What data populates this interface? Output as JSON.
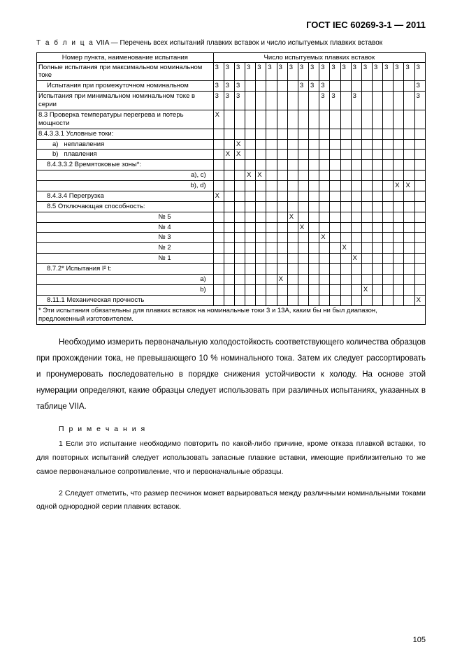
{
  "doc_header": "ГОСТ IEC 60269-3-1 — 2011",
  "table_caption_prefix": "Т а б л и ц а",
  "table_caption_num": "VIIA",
  "table_caption_text": " — Перечень всех испытаний плавких вставок и число испытуемых плавких вставок",
  "header_col1": "Номер пункта, наименование испытания",
  "header_col2": "Число испытуемых плавких вставок",
  "col_nums": [
    "3",
    "3",
    "3",
    "3",
    "3",
    "3",
    "3",
    "3",
    "3",
    "3",
    "3",
    "3",
    "3",
    "3",
    "3",
    "3",
    "3",
    "3",
    "3",
    "3"
  ],
  "rows": [
    {
      "label": "Полные испытания при максимальном номинальном токе",
      "marks": [
        "3",
        "3",
        "3",
        "3",
        "3",
        "3",
        "3",
        "3",
        "3",
        "3",
        "3",
        "3",
        "3",
        "3",
        "3",
        "3",
        "3",
        "3",
        "3",
        "3"
      ]
    },
    {
      "label": "Испытания при промежуточном номинальном",
      "marks": [
        "3",
        "3",
        "3",
        "",
        "",
        "",
        "",
        "",
        "3",
        "3",
        "3",
        "",
        "",
        "",
        "",
        "",
        "",
        "",
        "",
        "3"
      ],
      "indent": "indent1"
    },
    {
      "label": "Испытания при минимальном номинальном токе в серии",
      "marks": [
        "3",
        "3",
        "3",
        "",
        "",
        "",
        "",
        "",
        "",
        "",
        "3",
        "3",
        "",
        "3",
        "",
        "",
        "",
        "",
        "",
        "3"
      ]
    },
    {
      "label": "8.3 Проверка температуры перегрева и потерь мощности",
      "marks": [
        "X",
        "",
        "",
        "",
        "",
        "",
        "",
        "",
        "",
        "",
        "",
        "",
        "",
        "",
        "",
        "",
        "",
        "",
        "",
        ""
      ]
    },
    {
      "label": "8.4.3.3.1 Условные токи:",
      "marks": [
        "",
        "",
        "",
        "",
        "",
        "",
        "",
        "",
        "",
        "",
        "",
        "",
        "",
        "",
        "",
        "",
        "",
        "",
        "",
        ""
      ]
    },
    {
      "label": "a)   неплавления",
      "marks": [
        "",
        "",
        "X",
        "",
        "",
        "",
        "",
        "",
        "",
        "",
        "",
        "",
        "",
        "",
        "",
        "",
        "",
        "",
        "",
        ""
      ],
      "indent": "indent-a"
    },
    {
      "label": "b)   плавления",
      "marks": [
        "",
        "X",
        "X",
        "",
        "",
        "",
        "",
        "",
        "",
        "",
        "",
        "",
        "",
        "",
        "",
        "",
        "",
        "",
        "",
        ""
      ],
      "indent": "indent-a",
      "underline_b": true
    },
    {
      "label": "8.4.3.3.2 Времятоковые зоны*:",
      "marks": [
        "",
        "",
        "",
        "",
        "",
        "",
        "",
        "",
        "",
        "",
        "",
        "",
        "",
        "",
        "",
        "",
        "",
        "",
        "",
        ""
      ],
      "indent": "indent1"
    },
    {
      "label": "a), c)",
      "marks": [
        "",
        "",
        "",
        "X",
        "X",
        "",
        "",
        "",
        "",
        "",
        "",
        "",
        "",
        "",
        "",
        "",
        "",
        "",
        "",
        ""
      ],
      "right": true
    },
    {
      "label": "b), d)",
      "marks": [
        "",
        "",
        "",
        "",
        "",
        "",
        "",
        "",
        "",
        "",
        "",
        "",
        "",
        "",
        "",
        "",
        "",
        "X",
        "X",
        ""
      ],
      "right": true
    },
    {
      "label": "8.4.3.4 Перегрузка",
      "marks": [
        "X",
        "",
        "",
        "",
        "",
        "",
        "",
        "",
        "",
        "",
        "",
        "",
        "",
        "",
        "",
        "",
        "",
        "",
        "",
        ""
      ],
      "indent": "indent1"
    },
    {
      "label": "8.5 Отключающая способность:",
      "marks": [
        "",
        "",
        "",
        "",
        "",
        "",
        "",
        "",
        "",
        "",
        "",
        "",
        "",
        "",
        "",
        "",
        "",
        "",
        "",
        ""
      ],
      "indent": "indent1"
    },
    {
      "label": "№ 5",
      "marks": [
        "",
        "",
        "",
        "",
        "",
        "",
        "",
        "X",
        "",
        "",
        "",
        "",
        "",
        "",
        "",
        "",
        "",
        "",
        "",
        ""
      ],
      "numr": true
    },
    {
      "label": "№ 4",
      "marks": [
        "",
        "",
        "",
        "",
        "",
        "",
        "",
        "",
        "X",
        "",
        "",
        "",
        "",
        "",
        "",
        "",
        "",
        "",
        "",
        ""
      ],
      "numr": true
    },
    {
      "label": "№ 3",
      "marks": [
        "",
        "",
        "",
        "",
        "",
        "",
        "",
        "",
        "",
        "",
        "X",
        "",
        "",
        "",
        "",
        "",
        "",
        "",
        "",
        ""
      ],
      "numr": true
    },
    {
      "label": "№ 2",
      "marks": [
        "",
        "",
        "",
        "",
        "",
        "",
        "",
        "",
        "",
        "",
        "",
        "",
        "X",
        "",
        "",
        "",
        "",
        "",
        "",
        ""
      ],
      "numr": true
    },
    {
      "label": "№ 1",
      "marks": [
        "",
        "",
        "",
        "",
        "",
        "",
        "",
        "",
        "",
        "",
        "",
        "",
        "",
        "X",
        "",
        "",
        "",
        "",
        "",
        ""
      ],
      "numr": true
    },
    {
      "label": "8.7.2* Испытания I² t:",
      "marks": [
        "",
        "",
        "",
        "",
        "",
        "",
        "",
        "",
        "",
        "",
        "",
        "",
        "",
        "",
        "",
        "",
        "",
        "",
        "",
        ""
      ],
      "indent": "indent1"
    },
    {
      "label": "a)",
      "marks": [
        "",
        "",
        "",
        "",
        "",
        "",
        "X",
        "",
        "",
        "",
        "",
        "",
        "",
        "",
        "",
        "",
        "",
        "",
        "",
        ""
      ],
      "right": true
    },
    {
      "label": "b)",
      "marks": [
        "",
        "",
        "",
        "",
        "",
        "",
        "",
        "",
        "",
        "",
        "",
        "",
        "",
        "",
        "X",
        "",
        "",
        "",
        "",
        ""
      ],
      "right": true
    },
    {
      "label": "8.11.1 Механическая прочность",
      "marks": [
        "",
        "",
        "",
        "",
        "",
        "",
        "",
        "",
        "",
        "",
        "",
        "",
        "",
        "",
        "",
        "",
        "",
        "",
        "",
        "X"
      ],
      "indent": "indent1"
    }
  ],
  "footnote": "* Эти испытания обязательны для плавких вставок на номинальные токи 3 и 13А, каким бы ни был диапазон, предложенный изготовителем.",
  "para1": "Необходимо измерить первоначальную холодостойкость соответствующего количества образцов при прохождении тока, не превышающего 10 % номинального тока. Затем их следует рассортировать и пронумеровать последовательно в порядке снижения устойчивости к холоду. На основе этой нумерации определяют, какие образцы следует использовать при различных испытаниях, указанных в таблице VIIA.",
  "notes_heading": "П р и м е ч а н и я",
  "note1": "1 Если это испытание необходимо повторить по какой-либо причине, кроме отказа плавкой вставки, то для повторных испытаний следует использовать запасные плавкие вставки, имеющие приблизительно то же самое первоначальное сопротивление, что и первоначальные образцы.",
  "note2": "2 Следует отметить, что размер песчинок может варьироваться между различными номинальными токами одной однородной серии плавких вставок.",
  "pagenum": "105"
}
